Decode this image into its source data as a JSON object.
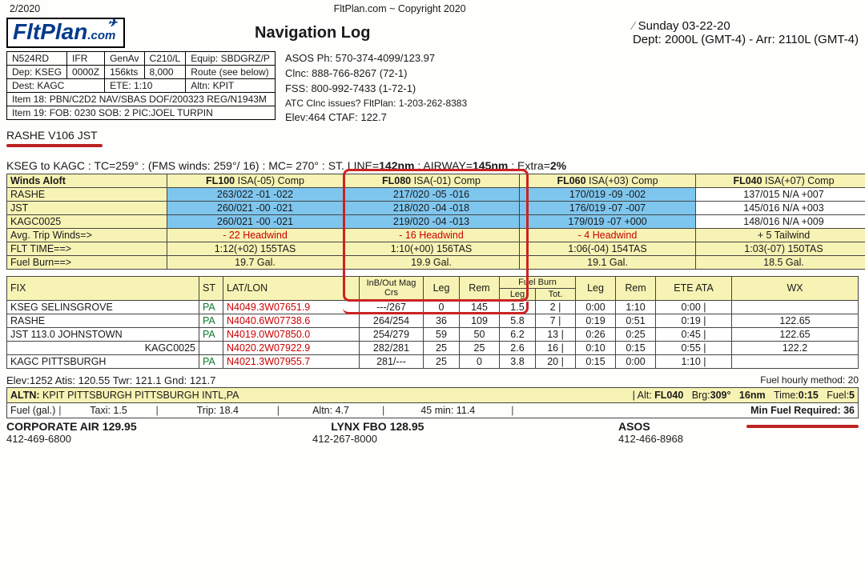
{
  "top": {
    "left": "2/2020",
    "center": "FltPlan.com ~ Copyright 2020"
  },
  "header": {
    "logo_a": "FltPlan",
    "logo_b": ".com",
    "title": "Navigation Log",
    "date": "Sunday 03-22-20",
    "dep_arr": "Dept: 2000L (GMT-4) -  Arr: 2110L (GMT-4)"
  },
  "flightbox": {
    "r1": [
      "N524RD",
      "IFR",
      "GenAv",
      "C210/L",
      "Equip: SBDGRZ/P"
    ],
    "r2": [
      "Dep: KSEG",
      "0000Z",
      "156kts",
      "8,000",
      "Route (see below)"
    ],
    "r3": [
      "Dest: KAGC",
      "ETE: 1:10",
      "Altn: KPIT"
    ],
    "r4": [
      "Item 18: PBN/C2D2 NAV/SBAS DOF/200323 REG/N1943M"
    ],
    "r5": [
      "Item 19:  FOB: 0230 SOB: 2  PIC:JOEL TURPIN"
    ]
  },
  "contact": {
    "l1": "ASOS Ph: 570-374-4099/123.97",
    "l2": "Clnc: 888-766-8267 (72-1)",
    "l3": "FSS: 800-992-7433 (1-72-1)",
    "l4": "ATC Clnc issues? FltPlan: 1-203-262-8383",
    "l5": "Elev:464   CTAF: 122.7"
  },
  "route": "RASHE V106 JST",
  "leg_summary": "KSEG to KAGC : TC=259° : (FMS winds: 259°/ 16) : MC= 270° : ST. LINE=142nm : AIRWAY=145nm : Extra=2%",
  "winds": {
    "cols_label": "Winds Aloft",
    "headers": [
      "FL100 ISA(-05) Comp",
      "FL080 ISA(-01) Comp",
      "FL060 ISA(+03) Comp",
      "FL040 ISA(+07) Comp"
    ],
    "rows": [
      {
        "fix": "RASHE",
        "c": [
          "263/022  -01  -022",
          "217/020  -05  -016",
          "170/019  -09  -002",
          "137/015  N/A  +007"
        ]
      },
      {
        "fix": "JST",
        "c": [
          "260/021  -00  -021",
          "218/020  -04  -018",
          "176/019  -07  -007",
          "145/016  N/A  +003"
        ]
      },
      {
        "fix": "KAGC0025",
        "c": [
          "260/021  -00  -021",
          "219/020  -04  -013",
          "179/019  -07  +000",
          "148/016  N/A  +009"
        ]
      }
    ],
    "summary": [
      {
        "lbl": "Avg. Trip Winds=>",
        "c": [
          "- 22 Headwind",
          "- 16 Headwind",
          "- 4 Headwind",
          "+ 5 Tailwind"
        ],
        "red": [
          0,
          1,
          2
        ]
      },
      {
        "lbl": "FLT TIME==>",
        "c": [
          "1:12(+02)  155TAS",
          "1:10(+00)  156TAS",
          "1:06(-04)  154TAS",
          "1:03(-07)  150TAS"
        ],
        "red": []
      },
      {
        "lbl": "Fuel Burn==>",
        "c": [
          "19.7 Gal.",
          "19.9 Gal.",
          "19.1 Gal.",
          "18.5 Gal."
        ],
        "red": []
      }
    ]
  },
  "fix": {
    "headers": [
      "FIX",
      "ST",
      "LAT/LON",
      "InB/Out Mag Crs",
      "Leg",
      "Rem",
      "Leg",
      "Tot.",
      "Leg",
      "Rem",
      "ETE  ATA",
      "WX"
    ],
    "group_hdr_fuel": "Fuel Burn",
    "rows": [
      {
        "c": [
          "KSEG SELINSGROVE",
          "PA",
          "N4049.3W07651.9",
          "---/267",
          "0",
          "145",
          "1.5",
          "2 |",
          "0:00",
          "1:10",
          "0:00 |",
          ""
        ]
      },
      {
        "c": [
          "RASHE",
          "PA",
          "N4040.6W07738.6",
          "264/254",
          "36",
          "109",
          "5.8",
          "7 |",
          "0:19",
          "0:51",
          "0:19 |",
          "122.65"
        ]
      },
      {
        "c": [
          "JST 113.0 JOHNSTOWN",
          "PA",
          "N4019.0W07850.0",
          "254/279",
          "59",
          "50",
          "6.2",
          "13 |",
          "0:26",
          "0:25",
          "0:45 |",
          "122.65"
        ]
      },
      {
        "c": [
          "KAGC0025",
          "",
          "N4020.2W07922.9",
          "282/281",
          "25",
          "25",
          "2.6",
          "16 |",
          "0:10",
          "0:15",
          "0:55 |",
          "122.2"
        ]
      },
      {
        "c": [
          "KAGC PITTSBURGH",
          "PA",
          "N4021.3W07955.7",
          "281/---",
          "25",
          "0",
          "3.8",
          "20 |",
          "0:15",
          "0:00",
          "1:10 |",
          ""
        ]
      }
    ],
    "right_align_kagc0025": true
  },
  "foot": {
    "elev": "Elev:1252  Atis: 120.55    Twr: 121.1  Gnd: 121.7",
    "fuel_method": "Fuel hourly method: 20",
    "altn_l": "ALTN: KPIT PITTSBURGH PITTSBURGH INTL,PA",
    "altn_r": "| Alt: FL040    Brg:309°   16nm   Time:0:15   Fuel:5",
    "fuel": [
      "Fuel (gal.)",
      "Taxi: 1.5",
      "Trip: 18.4",
      "Altn: 4.7",
      "45 min: 11.4",
      "Min Fuel Required: 36"
    ],
    "fbo": [
      {
        "n": "CORPORATE AIR 129.95",
        "p": "412-469-6800"
      },
      {
        "n": "LYNX FBO 128.95",
        "p": "412-267-8000"
      },
      {
        "n": "ASOS",
        "p": "412-466-8968"
      }
    ]
  }
}
